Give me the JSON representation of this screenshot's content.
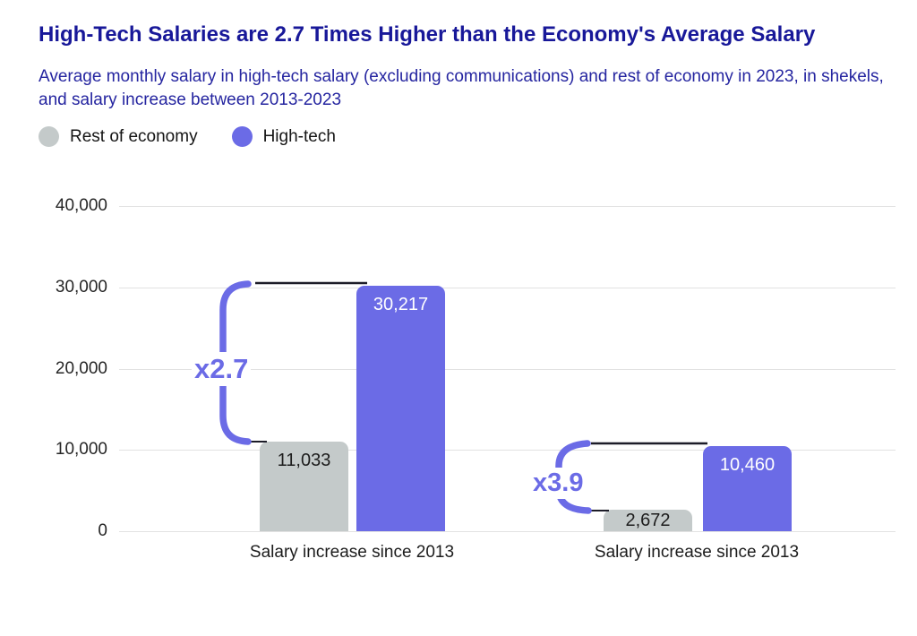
{
  "colors": {
    "accent_purple": "#6B6BE6",
    "bar_gray": "#C4CACA",
    "title_navy": "#181899",
    "subtitle_navy": "#2525A0",
    "connector_black": "#1c1c28",
    "gridline_gray": "#E2E2E2"
  },
  "chart_data": {
    "type": "bar",
    "title": "High-Tech Salaries are 2.7 Times Higher than the Economy's Average Salary",
    "subtitle": "Average monthly salary in high-tech salary (excluding communications) and rest of economy in 2023, in shekels, and salary increase between 2013-2023",
    "categories": [
      "Salary increase since 2013",
      "Salary increase since 2013"
    ],
    "series": [
      {
        "name": "Rest of economy",
        "color": "#C4CACA",
        "values": [
          11033,
          2672
        ],
        "value_labels": [
          "11,033",
          "2,672"
        ]
      },
      {
        "name": "High-tech",
        "color": "#6B6BE6",
        "values": [
          30217,
          10460
        ],
        "value_labels": [
          "30,217",
          "10,460"
        ]
      }
    ],
    "annotations": [
      {
        "label": "x2.7",
        "meaning": "high-tech vs rest-of-economy salary ratio, group 1"
      },
      {
        "label": "x3.9",
        "meaning": "high-tech vs rest-of-economy increase ratio, group 2"
      }
    ],
    "ylim": [
      0,
      40000
    ],
    "yticks": [
      "40,000",
      "30,000",
      "20,000",
      "10,000",
      "0"
    ],
    "grid": true,
    "legend_position": "top-left"
  }
}
